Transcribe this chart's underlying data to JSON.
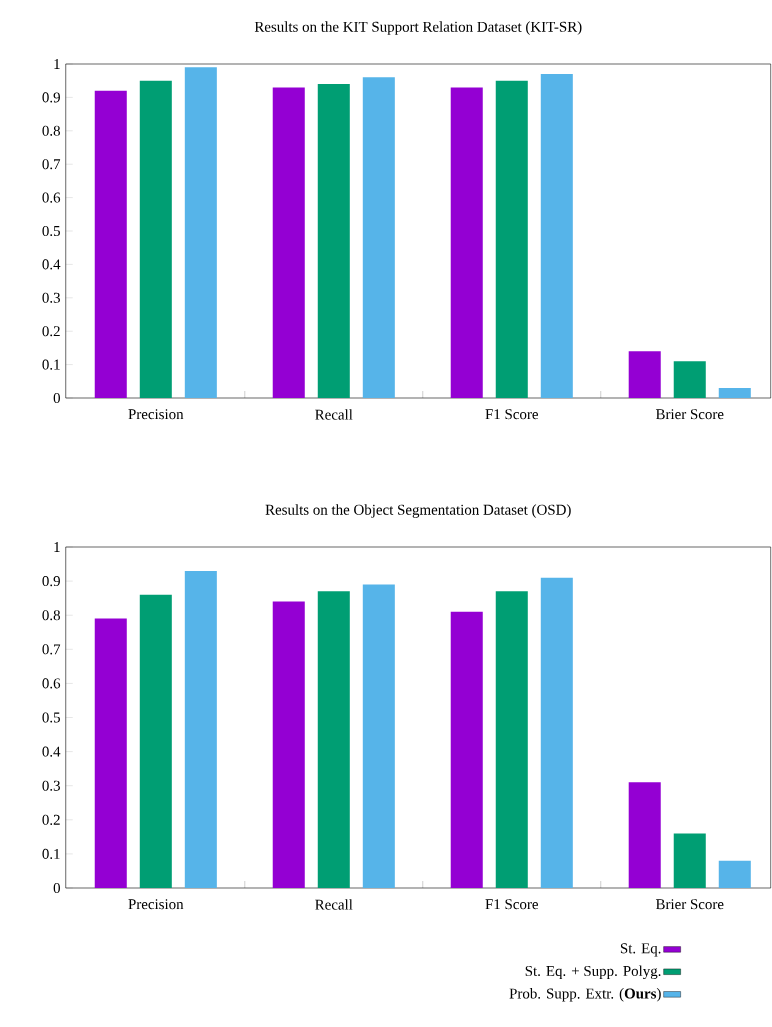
{
  "chart_data": [
    {
      "type": "bar",
      "title": "Results on the KIT Support Relation Dataset (KIT-SR)",
      "categories": [
        "Precision",
        "Recall",
        "F1 Score",
        "Brier Score"
      ],
      "series": [
        {
          "color": "#9400d3",
          "values": [
            0.92,
            0.93,
            0.93,
            0.14
          ]
        },
        {
          "color": "#009e73",
          "values": [
            0.95,
            0.94,
            0.95,
            0.11
          ]
        },
        {
          "color": "#56b4e9",
          "values": [
            0.99,
            0.96,
            0.97,
            0.03
          ]
        }
      ],
      "ylim": [
        0,
        1
      ],
      "yticks": [
        0,
        0.1,
        0.2,
        0.3,
        0.4,
        0.5,
        0.6,
        0.7,
        0.8,
        0.9,
        1
      ]
    },
    {
      "type": "bar",
      "title": "Results on the Object Segmentation Dataset (OSD)",
      "categories": [
        "Precision",
        "Recall",
        "F1 Score",
        "Brier Score"
      ],
      "series": [
        {
          "name": "St. Eq.",
          "color": "#9400d3",
          "values": [
            0.79,
            0.84,
            0.81,
            0.31
          ]
        },
        {
          "name": "St. Eq. + Supp. Polyg.",
          "color": "#009e73",
          "values": [
            0.86,
            0.87,
            0.87,
            0.16
          ]
        },
        {
          "name": "Prob. Supp. Extr. (**Ours**)",
          "color": "#56b4e9",
          "values": [
            0.93,
            0.89,
            0.91,
            0.08
          ]
        }
      ],
      "ylim": [
        0,
        1
      ],
      "yticks": [
        0,
        0.1,
        0.2,
        0.3,
        0.4,
        0.5,
        0.6,
        0.7,
        0.8,
        0.9,
        1
      ],
      "legend": "bottom right"
    }
  ]
}
